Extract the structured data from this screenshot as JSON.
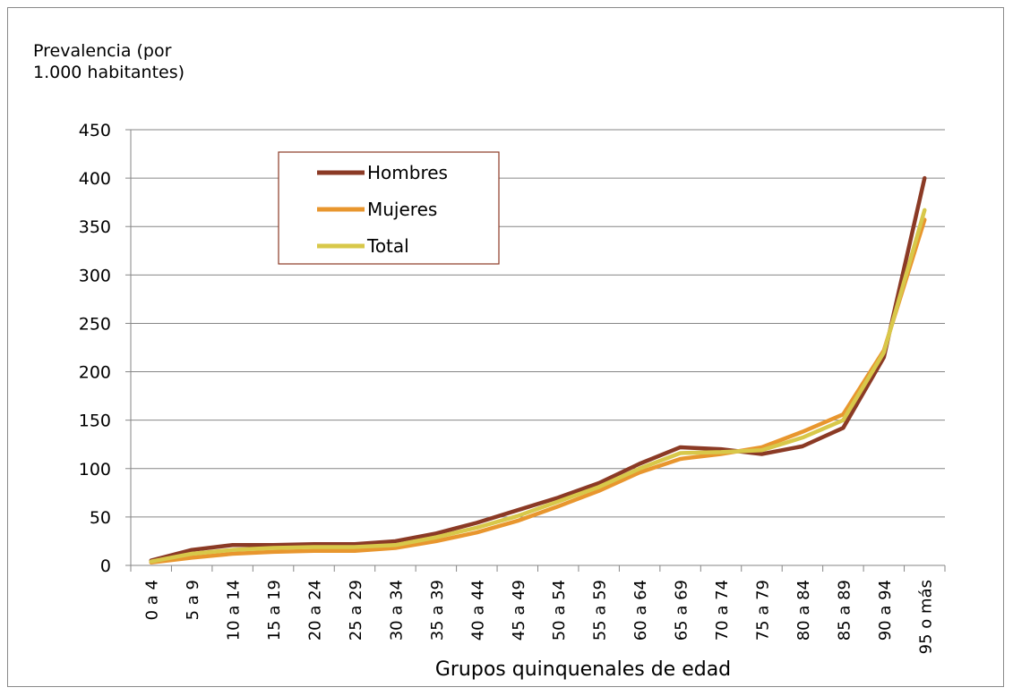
{
  "chart_data": {
    "type": "line",
    "title": "",
    "ylabel_lines": [
      "Prevalencia (por",
      "1.000 habitantes)"
    ],
    "xlabel": "Grupos quinquenales de edad",
    "ylim": [
      0,
      450
    ],
    "yticks": [
      0,
      50,
      100,
      150,
      200,
      250,
      300,
      350,
      400,
      450
    ],
    "grid": true,
    "legend_position": "upper-left inside plot",
    "categories": [
      "0 a 4",
      "5 a 9",
      "10 a 14",
      "15 a 19",
      "20 a 24",
      "25 a 29",
      "30 a 34",
      "35 a 39",
      "40 a 44",
      "45 a 49",
      "50 a 54",
      "55 a 59",
      "60 a 64",
      "65 a 69",
      "70 a 74",
      "75 a 79",
      "80 a 84",
      "85 a 89",
      "90 a 94",
      "95 o más"
    ],
    "series": [
      {
        "name": "Hombres",
        "color": "#8B3A25",
        "values": [
          5,
          16,
          21,
          21,
          22,
          22,
          25,
          33,
          44,
          57,
          70,
          85,
          105,
          122,
          120,
          115,
          123,
          142,
          215,
          400
        ]
      },
      {
        "name": "Mujeres",
        "color": "#E8962E",
        "values": [
          3,
          8,
          12,
          14,
          15,
          15,
          18,
          25,
          34,
          46,
          61,
          77,
          96,
          110,
          115,
          122,
          138,
          156,
          222,
          357
        ]
      },
      {
        "name": "Total",
        "color": "#D8C84A",
        "values": [
          4,
          12,
          16,
          18,
          19,
          19,
          21,
          29,
          39,
          51,
          66,
          81,
          100,
          116,
          117,
          119,
          132,
          150,
          220,
          367
        ]
      }
    ],
    "legend_frame_color": "#8B3A25",
    "axis_color": "#868686",
    "grid_color": "#868686"
  }
}
